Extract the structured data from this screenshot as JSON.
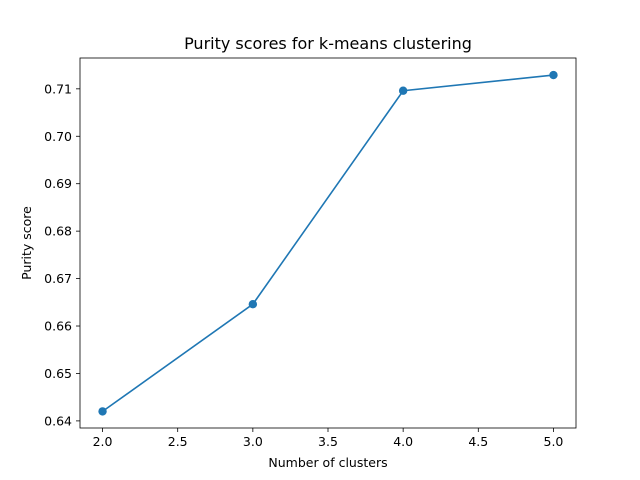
{
  "chart_data": {
    "type": "line",
    "title": "Purity scores for k-means clustering",
    "xlabel": "Number of clusters",
    "ylabel": "Purity score",
    "xlim": [
      1.85,
      5.15
    ],
    "ylim": [
      0.6385,
      0.7165
    ],
    "x_ticks": [
      2.0,
      2.5,
      3.0,
      3.5,
      4.0,
      4.5,
      5.0
    ],
    "x_tick_labels": [
      "2.0",
      "2.5",
      "3.0",
      "3.5",
      "4.0",
      "4.5",
      "5.0"
    ],
    "y_ticks": [
      0.64,
      0.65,
      0.66,
      0.67,
      0.68,
      0.69,
      0.7,
      0.71
    ],
    "y_tick_labels": [
      "0.64",
      "0.65",
      "0.66",
      "0.67",
      "0.68",
      "0.69",
      "0.70",
      "0.71"
    ],
    "grid": false,
    "series": [
      {
        "color": "#1f77b4",
        "marker": "circle",
        "x": [
          2,
          3,
          4,
          5
        ],
        "y": [
          0.642,
          0.6646,
          0.7096,
          0.7129
        ]
      }
    ]
  }
}
